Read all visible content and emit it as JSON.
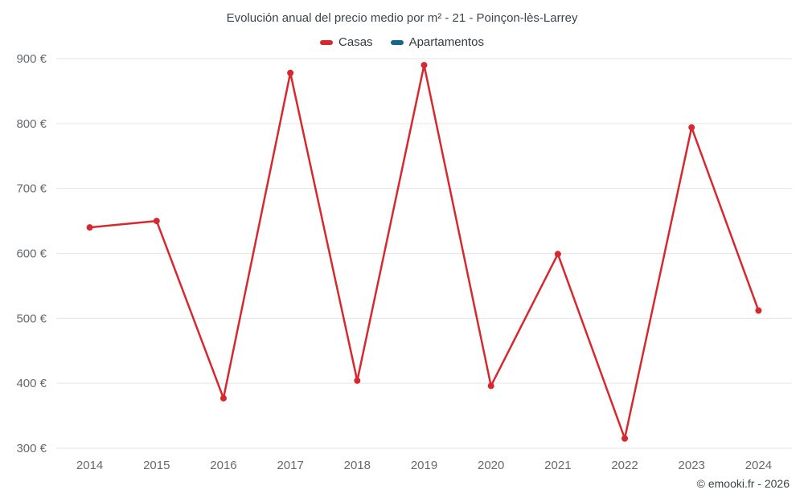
{
  "page": {
    "title": "Evolución anual del precio medio por m² - 21 - Poinçon-lès-Larrey",
    "footer_credit": "© emooki.fr - 2026"
  },
  "legend": [
    {
      "label": "Casas",
      "color": "#d7282f"
    },
    {
      "label": "Apartamentos",
      "color": "#15658d"
    }
  ],
  "chart_data": {
    "type": "line",
    "title": "Evolución anual del precio medio por m² - 21 - Poinçon-lès-Larrey",
    "x": [
      2014,
      2015,
      2016,
      2017,
      2018,
      2019,
      2020,
      2021,
      2022,
      2023,
      2024
    ],
    "series": [
      {
        "name": "Casas",
        "color": "#d7282f",
        "values": [
          640,
          650,
          377,
          878,
          404,
          890,
          396,
          599,
          315,
          794,
          512
        ]
      },
      {
        "name": "Apartamentos",
        "color": "#15658d",
        "values": []
      }
    ],
    "xlabel": "",
    "ylabel": "",
    "ylim": [
      300,
      900
    ],
    "ytick_step": 100,
    "ytick_suffix": " €",
    "grid": "horizontal-only",
    "gridline_color": "#e6e6e6",
    "tick_label_color": "#66696e",
    "legend_position": "top"
  }
}
